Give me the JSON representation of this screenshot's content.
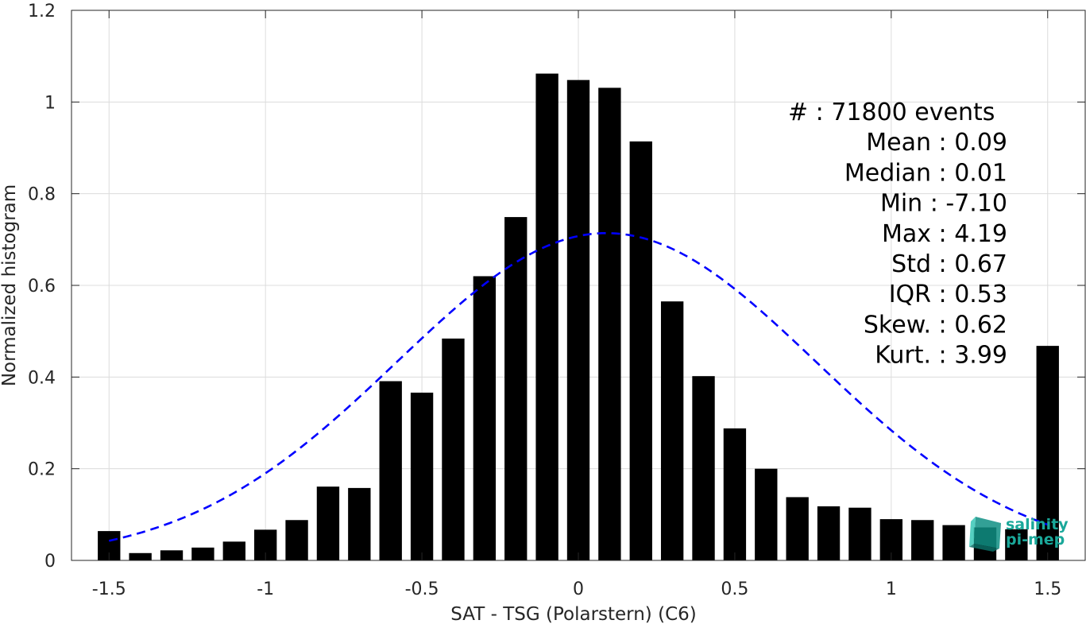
{
  "chart_data": {
    "type": "bar",
    "xlabel": "SAT - TSG (Polarstern) (C6)",
    "ylabel": "Normalized histogram",
    "xlim": [
      -1.62,
      1.62
    ],
    "ylim": [
      0,
      1.2
    ],
    "xticks": [
      -1.5,
      -1,
      -0.5,
      0,
      0.5,
      1,
      1.5
    ],
    "xtick_labels": [
      "-1.5",
      "-1",
      "-0.5",
      "0",
      "0.5",
      "1",
      "1.5"
    ],
    "yticks": [
      0,
      0.2,
      0.4,
      0.6,
      0.8,
      1,
      1.2
    ],
    "ytick_labels": [
      "0",
      "0.2",
      "0.4",
      "0.6",
      "0.8",
      "1",
      "1.2"
    ],
    "grid": true,
    "bar_color": "#000000",
    "bin_width": 0.1,
    "bins": [
      -1.5,
      -1.4,
      -1.3,
      -1.2,
      -1.1,
      -1.0,
      -0.9,
      -0.8,
      -0.7,
      -0.6,
      -0.5,
      -0.4,
      -0.3,
      -0.2,
      -0.1,
      0.0,
      0.1,
      0.2,
      0.3,
      0.4,
      0.5,
      0.6,
      0.7,
      0.8,
      0.9,
      1.0,
      1.1,
      1.2,
      1.3,
      1.4,
      1.5
    ],
    "values": [
      0.064,
      0.016,
      0.022,
      0.028,
      0.041,
      0.067,
      0.088,
      0.161,
      0.158,
      0.391,
      0.366,
      0.484,
      0.62,
      0.749,
      1.062,
      1.048,
      1.031,
      0.914,
      0.565,
      0.402,
      0.288,
      0.2,
      0.138,
      0.118,
      0.115,
      0.09,
      0.088,
      0.077,
      0.072,
      0.068,
      0.468
    ],
    "fit_curve": {
      "type": "gaussian",
      "mean": 0.09,
      "std": 0.67,
      "peak": 0.714,
      "color": "#0000ff",
      "style": "dashed",
      "x_range": [
        -1.5,
        1.5
      ]
    },
    "annotation": [
      {
        "label": "#",
        "sep": " : ",
        "value": "71800 events",
        "is_count": true
      },
      {
        "label": "Mean",
        "sep": " : ",
        "value": "0.09"
      },
      {
        "label": "Median",
        "sep": " : ",
        "value": "0.01"
      },
      {
        "label": "Min",
        "sep": " : ",
        "value": "-7.10"
      },
      {
        "label": "Max",
        "sep": " : ",
        "value": "4.19"
      },
      {
        "label": "Std",
        "sep": " : ",
        "value": "0.67"
      },
      {
        "label": "IQR",
        "sep": " : ",
        "value": "0.53"
      },
      {
        "label": "Skew.",
        "sep": " : ",
        "value": "0.62"
      },
      {
        "label": "Kurt.",
        "sep": " : ",
        "value": "3.99"
      }
    ]
  },
  "logo": {
    "line1": "salinity",
    "line2": "pi-mep",
    "color": "#1aa89a"
  }
}
